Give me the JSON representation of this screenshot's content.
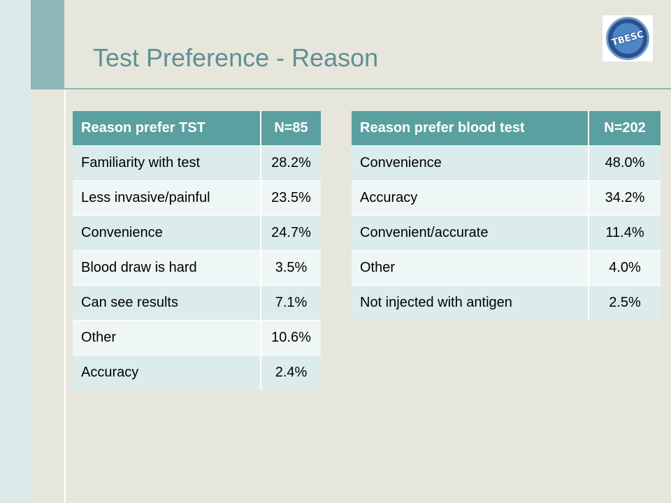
{
  "slide": {
    "title": "Test Preference - Reason",
    "logo_text": "TBESC"
  },
  "tst_table": {
    "headers": [
      "Reason prefer TST",
      "N=85"
    ],
    "rows": [
      [
        "Familiarity with test",
        "28.2%"
      ],
      [
        "Less invasive/painful",
        "23.5%"
      ],
      [
        "Convenience",
        "24.7%"
      ],
      [
        "Blood draw is hard",
        "3.5%"
      ],
      [
        "Can see results",
        "7.1%"
      ],
      [
        "Other",
        "10.6%"
      ],
      [
        "Accuracy",
        "2.4%"
      ]
    ]
  },
  "blood_table": {
    "headers": [
      "Reason prefer blood test",
      "N=202"
    ],
    "rows": [
      [
        "Convenience",
        "48.0%"
      ],
      [
        "Accuracy",
        "34.2%"
      ],
      [
        "Convenient/accurate",
        "11.4%"
      ],
      [
        "Other",
        "4.0%"
      ],
      [
        "Not injected with antigen",
        "2.5%"
      ]
    ]
  },
  "colors": {
    "header_bg": "#5ba0a0",
    "row_odd": "#dcecec",
    "row_even": "#eef6f6",
    "title": "#5f8f93",
    "background": "#e7e6dc"
  }
}
